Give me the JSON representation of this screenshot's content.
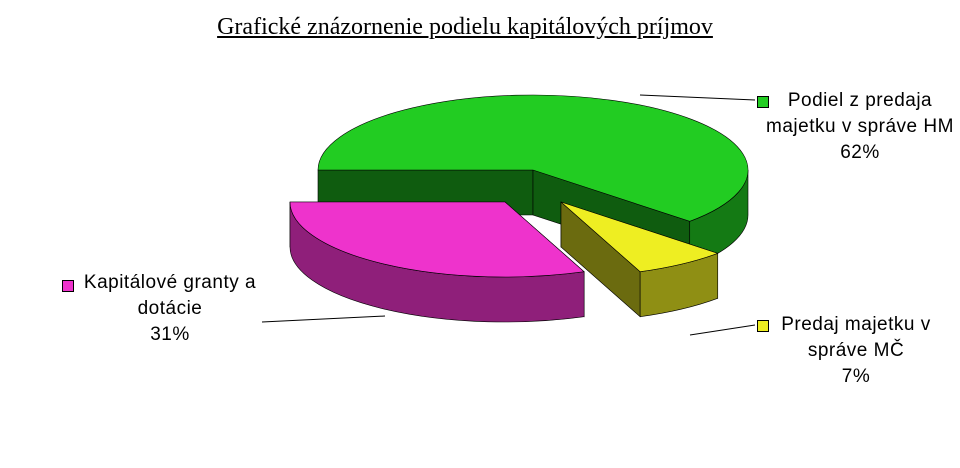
{
  "chart_data": {
    "type": "pie",
    "title": "Grafické znázornenie podielu kapitálových príjmov",
    "categories": [
      "Podiel z predaja majetku v správe HM",
      "Predaj majetku v správe MČ",
      "Kapitálové granty a dotácie"
    ],
    "values": [
      62,
      7,
      31
    ],
    "value_labels": [
      "62%",
      "7%",
      "31%"
    ],
    "colors": [
      "#22cc22",
      "#eeee22",
      "#ee33cc"
    ]
  }
}
